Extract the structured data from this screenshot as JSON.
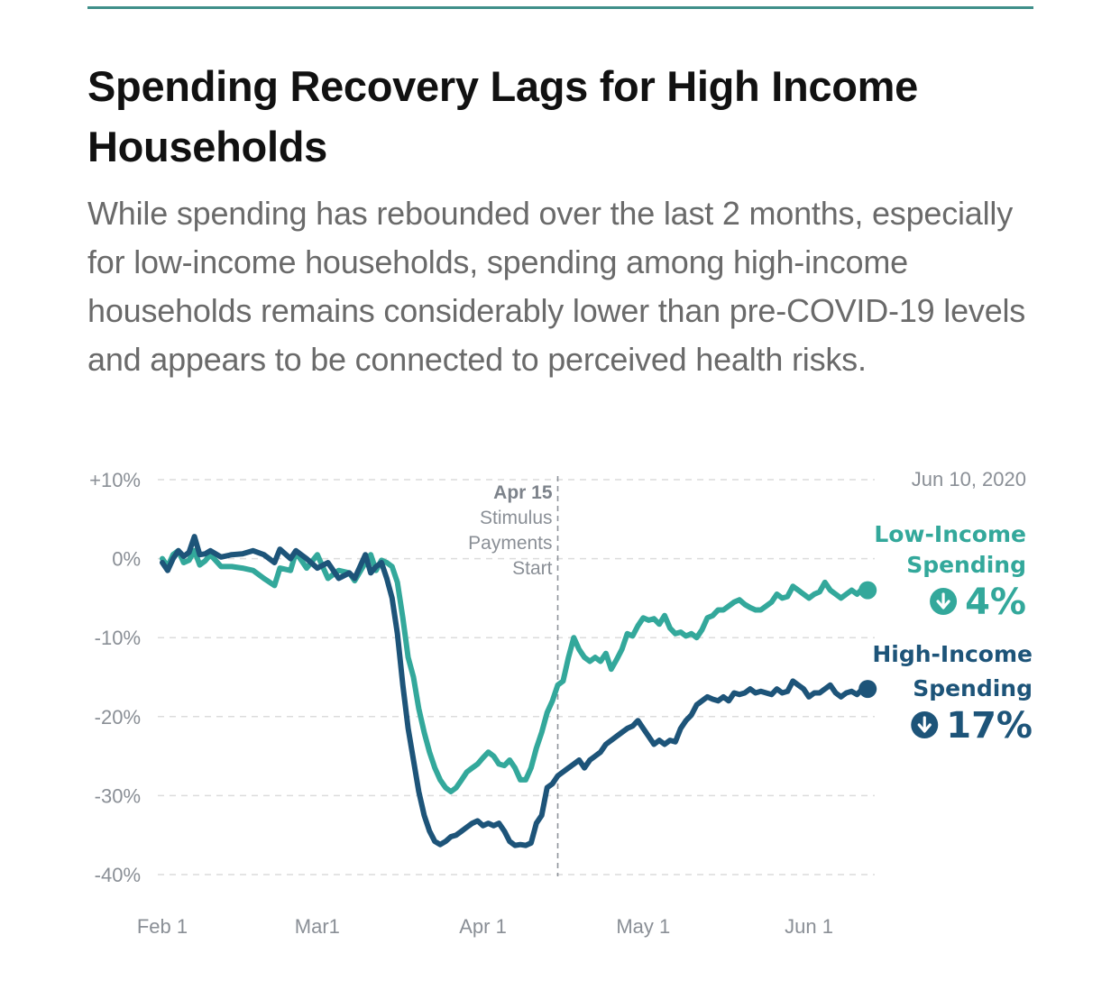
{
  "header": {
    "title": "Spending Recovery Lags for High Income Households",
    "subtitle": "While spending has rebounded over the last 2 months, especially for low-income households, spending among high-income households remains considerably lower than pre-COVID-19 levels and appears to be connected to perceived health risks."
  },
  "colors": {
    "rule": "#3f8f8a",
    "low_income": "#33a89b",
    "high_income": "#1d5479",
    "grid": "#dcdcdc",
    "axis_text": "#8a8f96"
  },
  "chart_data": {
    "type": "line",
    "date_label": "Jun 10, 2020",
    "ylim": [
      -40,
      10
    ],
    "y_ticks": [
      {
        "value": 10,
        "label": "+10%"
      },
      {
        "value": 0,
        "label": "0%"
      },
      {
        "value": -10,
        "label": "-10%"
      },
      {
        "value": -20,
        "label": "-20%"
      },
      {
        "value": -30,
        "label": "-30%"
      },
      {
        "value": -40,
        "label": "-40%"
      }
    ],
    "x_ticks": [
      {
        "date": "2020-02-01",
        "label": "Feb 1"
      },
      {
        "date": "2020-03-01",
        "label": "Mar1"
      },
      {
        "date": "2020-04-01",
        "label": "Apr 1"
      },
      {
        "date": "2020-05-01",
        "label": "May 1"
      },
      {
        "date": "2020-06-01",
        "label": "Jun 1"
      }
    ],
    "xlim": [
      "2020-02-01",
      "2020-06-15"
    ],
    "annotation": {
      "date": "2020-04-15",
      "title": "Apr 15",
      "lines": [
        "Stimulus",
        "Payments",
        "Start"
      ]
    },
    "series": [
      {
        "name": "Low-Income Spending",
        "name_lines": [
          "Low-Income",
          "Spending"
        ],
        "end_value_label": "4%",
        "direction": "down",
        "points": [
          [
            "2020-02-01",
            0.0
          ],
          [
            "2020-02-02",
            -1.0
          ],
          [
            "2020-02-03",
            0.5
          ],
          [
            "2020-02-04",
            1.0
          ],
          [
            "2020-02-05",
            -0.5
          ],
          [
            "2020-02-06",
            -0.2
          ],
          [
            "2020-02-07",
            1.0
          ],
          [
            "2020-02-08",
            -0.8
          ],
          [
            "2020-02-09",
            -0.3
          ],
          [
            "2020-02-10",
            0.5
          ],
          [
            "2020-02-12",
            -1.0
          ],
          [
            "2020-02-14",
            -1.0
          ],
          [
            "2020-02-16",
            -1.2
          ],
          [
            "2020-02-18",
            -1.5
          ],
          [
            "2020-02-20",
            -2.5
          ],
          [
            "2020-02-22",
            -3.4
          ],
          [
            "2020-02-23",
            -1.2
          ],
          [
            "2020-02-25",
            -1.5
          ],
          [
            "2020-02-26",
            0.8
          ],
          [
            "2020-02-28",
            -1.2
          ],
          [
            "2020-03-01",
            0.5
          ],
          [
            "2020-03-03",
            -2.5
          ],
          [
            "2020-03-05",
            -1.5
          ],
          [
            "2020-03-07",
            -1.8
          ],
          [
            "2020-03-08",
            -2.8
          ],
          [
            "2020-03-10",
            -0.5
          ],
          [
            "2020-03-11",
            0.5
          ],
          [
            "2020-03-12",
            -1.5
          ],
          [
            "2020-03-13",
            -0.2
          ],
          [
            "2020-03-14",
            -0.5
          ],
          [
            "2020-03-15",
            -1.0
          ],
          [
            "2020-03-16",
            -3.0
          ],
          [
            "2020-03-17",
            -7.5
          ],
          [
            "2020-03-18",
            -12.5
          ],
          [
            "2020-03-19",
            -15.0
          ],
          [
            "2020-03-20",
            -19.0
          ],
          [
            "2020-03-21",
            -22.0
          ],
          [
            "2020-03-22",
            -24.5
          ],
          [
            "2020-03-23",
            -26.5
          ],
          [
            "2020-03-24",
            -28.0
          ],
          [
            "2020-03-25",
            -29.0
          ],
          [
            "2020-03-26",
            -29.5
          ],
          [
            "2020-03-27",
            -29.0
          ],
          [
            "2020-03-28",
            -28.0
          ],
          [
            "2020-03-29",
            -27.0
          ],
          [
            "2020-03-30",
            -26.5
          ],
          [
            "2020-03-31",
            -26.0
          ],
          [
            "2020-04-01",
            -25.2
          ],
          [
            "2020-04-02",
            -24.5
          ],
          [
            "2020-04-03",
            -25.0
          ],
          [
            "2020-04-04",
            -26.0
          ],
          [
            "2020-04-05",
            -26.2
          ],
          [
            "2020-04-06",
            -25.5
          ],
          [
            "2020-04-07",
            -26.5
          ],
          [
            "2020-04-08",
            -28.0
          ],
          [
            "2020-04-09",
            -28.0
          ],
          [
            "2020-04-10",
            -26.5
          ],
          [
            "2020-04-11",
            -24.0
          ],
          [
            "2020-04-12",
            -22.0
          ],
          [
            "2020-04-13",
            -19.5
          ],
          [
            "2020-04-14",
            -18.0
          ],
          [
            "2020-04-15",
            -16.0
          ],
          [
            "2020-04-16",
            -15.5
          ],
          [
            "2020-04-17",
            -12.5
          ],
          [
            "2020-04-18",
            -10.0
          ],
          [
            "2020-04-19",
            -11.5
          ],
          [
            "2020-04-20",
            -12.5
          ],
          [
            "2020-04-21",
            -13.0
          ],
          [
            "2020-04-22",
            -12.5
          ],
          [
            "2020-04-23",
            -13.0
          ],
          [
            "2020-04-24",
            -12.0
          ],
          [
            "2020-04-25",
            -14.0
          ],
          [
            "2020-04-26",
            -12.8
          ],
          [
            "2020-04-27",
            -11.5
          ],
          [
            "2020-04-28",
            -9.5
          ],
          [
            "2020-04-29",
            -9.8
          ],
          [
            "2020-04-30",
            -8.5
          ],
          [
            "2020-05-01",
            -7.5
          ],
          [
            "2020-05-02",
            -7.8
          ],
          [
            "2020-05-03",
            -7.6
          ],
          [
            "2020-05-04",
            -8.3
          ],
          [
            "2020-05-05",
            -7.2
          ],
          [
            "2020-05-06",
            -8.8
          ],
          [
            "2020-05-07",
            -9.5
          ],
          [
            "2020-05-08",
            -9.3
          ],
          [
            "2020-05-09",
            -9.8
          ],
          [
            "2020-05-10",
            -9.5
          ],
          [
            "2020-05-11",
            -10.0
          ],
          [
            "2020-05-12",
            -9.0
          ],
          [
            "2020-05-13",
            -7.5
          ],
          [
            "2020-05-14",
            -7.2
          ],
          [
            "2020-05-15",
            -6.5
          ],
          [
            "2020-05-16",
            -6.5
          ],
          [
            "2020-05-17",
            -6.0
          ],
          [
            "2020-05-18",
            -5.5
          ],
          [
            "2020-05-19",
            -5.2
          ],
          [
            "2020-05-20",
            -5.8
          ],
          [
            "2020-05-21",
            -6.2
          ],
          [
            "2020-05-22",
            -6.5
          ],
          [
            "2020-05-23",
            -6.5
          ],
          [
            "2020-05-24",
            -6.0
          ],
          [
            "2020-05-25",
            -5.5
          ],
          [
            "2020-05-26",
            -4.5
          ],
          [
            "2020-05-27",
            -5.0
          ],
          [
            "2020-05-28",
            -4.8
          ],
          [
            "2020-05-29",
            -3.5
          ],
          [
            "2020-05-30",
            -4.0
          ],
          [
            "2020-05-31",
            -4.5
          ],
          [
            "2020-06-01",
            -5.0
          ],
          [
            "2020-06-02",
            -4.5
          ],
          [
            "2020-06-03",
            -4.2
          ],
          [
            "2020-06-04",
            -3.0
          ],
          [
            "2020-06-05",
            -4.0
          ],
          [
            "2020-06-06",
            -4.5
          ],
          [
            "2020-06-07",
            -5.0
          ],
          [
            "2020-06-08",
            -4.5
          ],
          [
            "2020-06-09",
            -4.0
          ],
          [
            "2020-06-10",
            -4.5
          ],
          [
            "2020-06-11",
            -3.8
          ],
          [
            "2020-06-12",
            -4.0
          ]
        ]
      },
      {
        "name": "High-Income Spending",
        "name_lines": [
          "High-Income",
          "Spending"
        ],
        "end_value_label": "17%",
        "direction": "down",
        "points": [
          [
            "2020-02-01",
            -0.5
          ],
          [
            "2020-02-02",
            -1.5
          ],
          [
            "2020-02-03",
            0.0
          ],
          [
            "2020-02-04",
            1.0
          ],
          [
            "2020-02-05",
            0.3
          ],
          [
            "2020-02-06",
            0.8
          ],
          [
            "2020-02-07",
            2.8
          ],
          [
            "2020-02-08",
            0.5
          ],
          [
            "2020-02-09",
            0.6
          ],
          [
            "2020-02-10",
            1.0
          ],
          [
            "2020-02-12",
            0.2
          ],
          [
            "2020-02-14",
            0.5
          ],
          [
            "2020-02-16",
            0.6
          ],
          [
            "2020-02-18",
            1.0
          ],
          [
            "2020-02-20",
            0.5
          ],
          [
            "2020-02-22",
            -0.5
          ],
          [
            "2020-02-23",
            1.2
          ],
          [
            "2020-02-25",
            0.0
          ],
          [
            "2020-02-26",
            1.0
          ],
          [
            "2020-02-28",
            0.0
          ],
          [
            "2020-03-01",
            -1.2
          ],
          [
            "2020-03-03",
            -0.5
          ],
          [
            "2020-03-05",
            -2.5
          ],
          [
            "2020-03-07",
            -1.8
          ],
          [
            "2020-03-08",
            -2.5
          ],
          [
            "2020-03-10",
            0.5
          ],
          [
            "2020-03-11",
            -1.8
          ],
          [
            "2020-03-12",
            -1.0
          ],
          [
            "2020-03-13",
            -0.5
          ],
          [
            "2020-03-14",
            -2.5
          ],
          [
            "2020-03-15",
            -5.0
          ],
          [
            "2020-03-16",
            -9.5
          ],
          [
            "2020-03-17",
            -16.0
          ],
          [
            "2020-03-18",
            -21.5
          ],
          [
            "2020-03-19",
            -25.5
          ],
          [
            "2020-03-20",
            -29.5
          ],
          [
            "2020-03-21",
            -32.5
          ],
          [
            "2020-03-22",
            -34.5
          ],
          [
            "2020-03-23",
            -35.8
          ],
          [
            "2020-03-24",
            -36.2
          ],
          [
            "2020-03-25",
            -35.8
          ],
          [
            "2020-03-26",
            -35.2
          ],
          [
            "2020-03-27",
            -35.0
          ],
          [
            "2020-03-28",
            -34.5
          ],
          [
            "2020-03-29",
            -34.0
          ],
          [
            "2020-03-30",
            -33.5
          ],
          [
            "2020-03-31",
            -33.2
          ],
          [
            "2020-04-01",
            -33.8
          ],
          [
            "2020-04-02",
            -33.5
          ],
          [
            "2020-04-03",
            -33.8
          ],
          [
            "2020-04-04",
            -33.5
          ],
          [
            "2020-04-05",
            -34.5
          ],
          [
            "2020-04-06",
            -35.8
          ],
          [
            "2020-04-07",
            -36.3
          ],
          [
            "2020-04-08",
            -36.2
          ],
          [
            "2020-04-09",
            -36.3
          ],
          [
            "2020-04-10",
            -36.0
          ],
          [
            "2020-04-11",
            -33.5
          ],
          [
            "2020-04-12",
            -32.5
          ],
          [
            "2020-04-13",
            -29.0
          ],
          [
            "2020-04-14",
            -28.5
          ],
          [
            "2020-04-15",
            -27.5
          ],
          [
            "2020-04-16",
            -27.0
          ],
          [
            "2020-04-17",
            -26.5
          ],
          [
            "2020-04-18",
            -26.0
          ],
          [
            "2020-04-19",
            -25.5
          ],
          [
            "2020-04-20",
            -26.5
          ],
          [
            "2020-04-21",
            -25.5
          ],
          [
            "2020-04-22",
            -25.0
          ],
          [
            "2020-04-23",
            -24.5
          ],
          [
            "2020-04-24",
            -23.5
          ],
          [
            "2020-04-25",
            -23.0
          ],
          [
            "2020-04-26",
            -22.5
          ],
          [
            "2020-04-27",
            -22.0
          ],
          [
            "2020-04-28",
            -21.5
          ],
          [
            "2020-04-29",
            -21.2
          ],
          [
            "2020-04-30",
            -20.5
          ],
          [
            "2020-05-01",
            -21.5
          ],
          [
            "2020-05-02",
            -22.5
          ],
          [
            "2020-05-03",
            -23.5
          ],
          [
            "2020-05-04",
            -23.0
          ],
          [
            "2020-05-05",
            -23.5
          ],
          [
            "2020-05-06",
            -23.0
          ],
          [
            "2020-05-07",
            -23.2
          ],
          [
            "2020-05-08",
            -21.5
          ],
          [
            "2020-05-09",
            -20.5
          ],
          [
            "2020-05-10",
            -19.8
          ],
          [
            "2020-05-11",
            -18.5
          ],
          [
            "2020-05-12",
            -18.0
          ],
          [
            "2020-05-13",
            -17.5
          ],
          [
            "2020-05-14",
            -17.8
          ],
          [
            "2020-05-15",
            -18.0
          ],
          [
            "2020-05-16",
            -17.5
          ],
          [
            "2020-05-17",
            -18.0
          ],
          [
            "2020-05-18",
            -17.0
          ],
          [
            "2020-05-19",
            -17.2
          ],
          [
            "2020-05-20",
            -17.0
          ],
          [
            "2020-05-21",
            -16.5
          ],
          [
            "2020-05-22",
            -17.0
          ],
          [
            "2020-05-23",
            -16.8
          ],
          [
            "2020-05-24",
            -17.0
          ],
          [
            "2020-05-25",
            -17.2
          ],
          [
            "2020-05-26",
            -16.5
          ],
          [
            "2020-05-27",
            -17.0
          ],
          [
            "2020-05-28",
            -16.8
          ],
          [
            "2020-05-29",
            -15.5
          ],
          [
            "2020-05-30",
            -16.0
          ],
          [
            "2020-05-31",
            -16.5
          ],
          [
            "2020-06-01",
            -17.5
          ],
          [
            "2020-06-02",
            -17.0
          ],
          [
            "2020-06-03",
            -17.0
          ],
          [
            "2020-06-04",
            -16.5
          ],
          [
            "2020-06-05",
            -16.0
          ],
          [
            "2020-06-06",
            -17.0
          ],
          [
            "2020-06-07",
            -17.5
          ],
          [
            "2020-06-08",
            -17.0
          ],
          [
            "2020-06-09",
            -16.8
          ],
          [
            "2020-06-10",
            -17.2
          ],
          [
            "2020-06-11",
            -16.5
          ],
          [
            "2020-06-12",
            -16.5
          ]
        ]
      }
    ]
  }
}
